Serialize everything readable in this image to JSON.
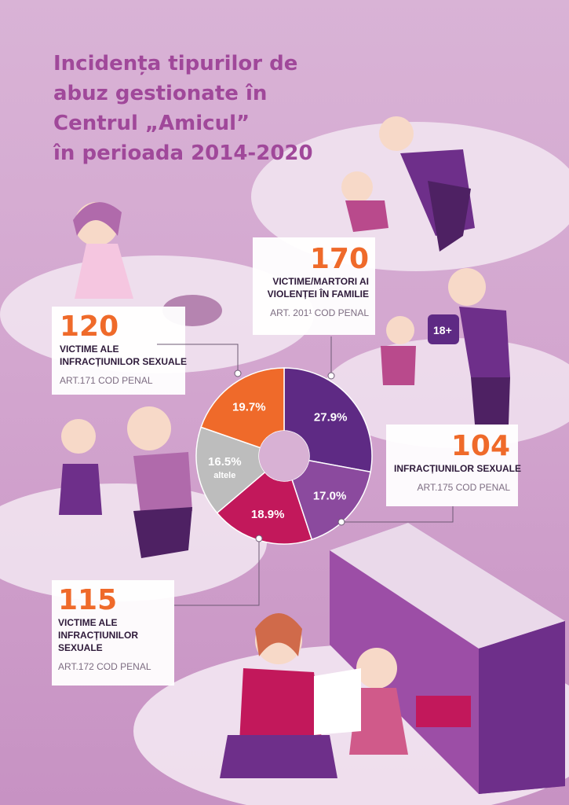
{
  "title_lines": [
    "Incidența tipurilor de",
    "abuz gestionate în",
    "Centrul „Amicul”",
    "în perioada 2014-2020"
  ],
  "callouts": {
    "c120": {
      "value": "120",
      "line1": "VICTIME ALE",
      "line2": "INFRACȚIUNILOR SEXUALE",
      "article": "ART.171 COD PENAL"
    },
    "c170": {
      "value": "170",
      "line1": "VICTIME/MARTORI AI",
      "line2": "VIOLENȚEI ÎN FAMILIE",
      "article": "ART. 201¹ COD PENAL"
    },
    "c104": {
      "value": "104",
      "line1": "INFRACȚIUNILOR SEXUALE",
      "article": "ART.175 COD PENAL"
    },
    "c115": {
      "value": "115",
      "line1": "VICTIME ALE",
      "line2": "INFRACȚIUNILOR",
      "line3": "SEXUALE",
      "article": "ART.172 COD PENAL"
    }
  },
  "tablet_text": "18+",
  "chart_data": {
    "type": "pie",
    "donut": true,
    "slices": [
      {
        "label": "ART. 201¹ COD PENAL",
        "value": 27.9,
        "display": "27.9%",
        "color": "#5e2a84"
      },
      {
        "label": "ART.175 COD PENAL",
        "value": 17.0,
        "display": "17.0%",
        "color": "#8b4a9e"
      },
      {
        "label": "ART.172 COD PENAL",
        "value": 18.9,
        "display": "18.9%",
        "color": "#c2185b"
      },
      {
        "label": "altele",
        "value": 16.5,
        "display": "16.5%",
        "sublabel": "altele",
        "color": "#bdbdbd"
      },
      {
        "label": "ART.171 COD PENAL",
        "value": 19.7,
        "display": "19.7%",
        "color": "#ef6a2a"
      }
    ]
  }
}
